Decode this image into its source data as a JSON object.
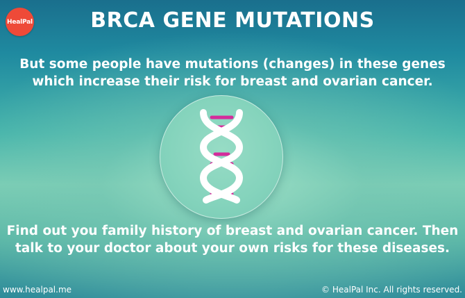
{
  "brand": {
    "logo_text": "HealPal",
    "logo_color": "#ee4a38"
  },
  "title": "BRCA GENE MUTATIONS",
  "intro_text": "But some people have mutations (changes) in these genes which increase their risk for breast and ovarian cancer.",
  "illustration": {
    "icon": "dna-helix-icon",
    "strand_color": "#ffffff",
    "base_pair_color": "#d42c9b"
  },
  "outro_text": "Find out you family history of breast and ovarian cancer. Then talk to your doctor about your own risks for these diseases.",
  "footer": {
    "website": "www.healpal.me",
    "copyright": "© HealPal Inc. All rights reserved."
  }
}
